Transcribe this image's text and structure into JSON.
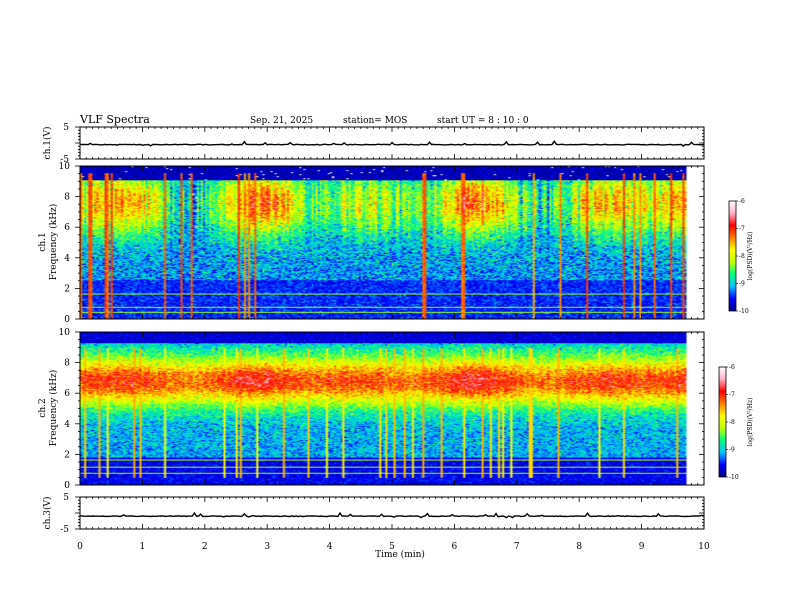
{
  "chart_data": {
    "type": "heatmap",
    "title": "VLF Spectra",
    "date": "Sep. 21, 2025",
    "station": "station= MOS",
    "start_ut": "start  UT =   8 : 10 : 0",
    "xlabel": "Time  (min)",
    "xlim": [
      0,
      10
    ],
    "xticks": [
      "0",
      "1",
      "2",
      "3",
      "4",
      "5",
      "6",
      "7",
      "8",
      "9",
      "10"
    ],
    "panels": {
      "ch1_wave": {
        "ylabel": "ch.1(V)",
        "ylim": [
          -5,
          5
        ],
        "yticks": [
          "5",
          "-5"
        ],
        "trace_level": -0.5
      },
      "ch1_spec": {
        "ylabel_top": "ch.1",
        "ylabel_bottom": "Frequency  (kHz)",
        "ylim": [
          0,
          10
        ],
        "yticks": [
          "0",
          "2",
          "4",
          "6",
          "8",
          "10"
        ],
        "data_end_min": 9.85,
        "band_center_khz": 7.6,
        "bright_lines_khz": [
          0.5,
          0.8,
          1.7
        ]
      },
      "ch2_spec": {
        "ylabel_top": "ch.2",
        "ylabel_bottom": "Frequency  (kHz)",
        "ylim": [
          0,
          10
        ],
        "yticks": [
          "0",
          "2",
          "4",
          "6",
          "8",
          "10"
        ],
        "data_end_min": 9.85,
        "band_center_khz": 6.8,
        "bright_lines_khz": [
          0.8,
          1.2,
          1.7
        ]
      },
      "ch3_wave": {
        "ylabel": "ch.3(V)",
        "ylim": [
          -5,
          5
        ],
        "yticks": [
          "5",
          "-5"
        ],
        "trace_level": -1
      }
    },
    "colorbar": {
      "label": "log(PSD)(V²/Hz)",
      "range": [
        -10,
        -6
      ],
      "ticks": [
        "-6",
        "-7",
        "-8",
        "-9",
        "-10"
      ],
      "colors": [
        "#00007f",
        "#0000ff",
        "#00bfff",
        "#00ff80",
        "#bfff00",
        "#ffff00",
        "#ff8000",
        "#ff0000",
        "#ffb0c8",
        "#ffffff"
      ]
    }
  }
}
